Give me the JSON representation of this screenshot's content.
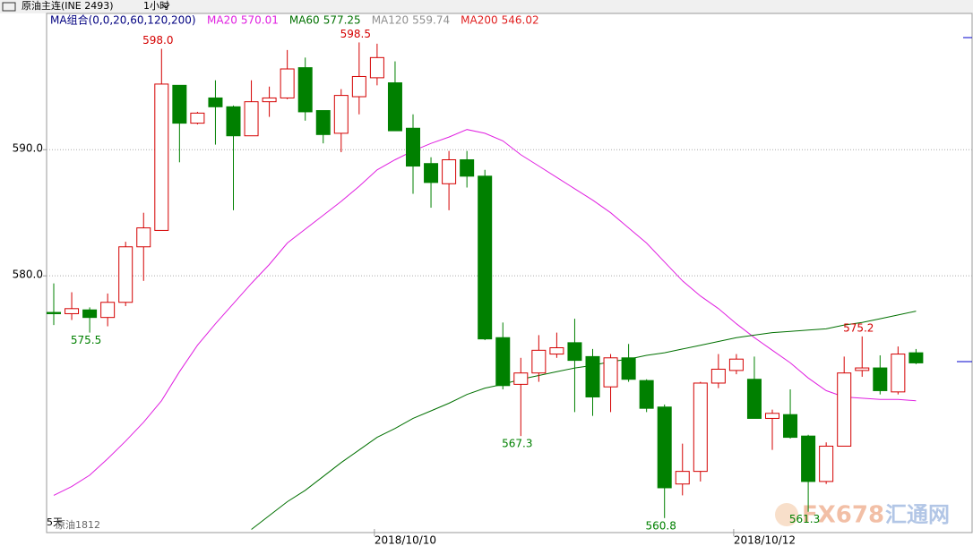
{
  "header": {
    "title": "原油主连(INE 2493)",
    "period": "1小时"
  },
  "chart_data": {
    "type": "candlestick",
    "legend_title": "MA组合(0,0,20,60,120,200)",
    "ylim": [
      559.65,
      600.8
    ],
    "yticks": [
      {
        "value": 580,
        "label": "580.0"
      },
      {
        "value": 590,
        "label": "590.0"
      }
    ],
    "grid": true,
    "up_color": "#d40000",
    "down_color": "#008000",
    "categories": [
      null,
      null,
      null,
      null,
      null,
      null,
      null,
      null,
      null,
      null,
      null,
      null,
      null,
      null,
      null,
      null,
      null,
      null,
      "2018/10/10",
      null,
      null,
      null,
      null,
      null,
      null,
      null,
      null,
      null,
      null,
      null,
      null,
      null,
      null,
      null,
      null,
      null,
      null,
      null,
      "2018/10/12",
      null,
      null,
      null,
      null,
      null,
      null,
      null,
      null,
      null,
      null
    ],
    "open": [
      577.1,
      577.0,
      577.3,
      576.7,
      577.9,
      582.3,
      583.6,
      595.1,
      592.1,
      594.1,
      593.4,
      591.1,
      593.8,
      594.1,
      596.5,
      593.1,
      591.3,
      594.2,
      595.7,
      595.3,
      591.7,
      588.9,
      587.3,
      589.2,
      587.9,
      575.1,
      571.4,
      572.3,
      573.8,
      574.7,
      573.6,
      571.2,
      573.5,
      571.7,
      569.6,
      563.5,
      564.5,
      571.5,
      572.5,
      571.8,
      568.7,
      569.0,
      567.3,
      563.7,
      566.5,
      572.5,
      572.7,
      570.8,
      573.9
    ],
    "high": [
      579.4,
      578.7,
      577.5,
      578.6,
      582.7,
      585.0,
      598.0,
      595.1,
      593.0,
      595.5,
      593.5,
      595.5,
      595.0,
      597.9,
      597.3,
      593.1,
      594.8,
      598.5,
      598.4,
      597.0,
      592.8,
      589.4,
      589.9,
      589.9,
      588.4,
      576.3,
      573.5,
      575.3,
      575.5,
      576.6,
      574.2,
      573.8,
      574.6,
      571.8,
      569.8,
      566.7,
      571.6,
      573.8,
      573.8,
      573.6,
      569.4,
      571.0,
      567.4,
      566.8,
      573.6,
      575.2,
      573.7,
      574.4,
      574.2
    ],
    "low": [
      576.1,
      576.5,
      575.5,
      576.0,
      577.6,
      579.6,
      583.6,
      589.0,
      592.0,
      590.4,
      585.2,
      591.1,
      592.6,
      594.0,
      592.3,
      590.5,
      589.8,
      592.8,
      595.1,
      591.5,
      586.5,
      585.4,
      585.2,
      587.0,
      574.9,
      571.0,
      567.3,
      571.6,
      573.5,
      569.2,
      568.9,
      569.2,
      571.6,
      569.2,
      560.8,
      562.6,
      563.7,
      571.1,
      572.2,
      568.7,
      566.2,
      567.1,
      561.3,
      563.5,
      566.5,
      572.0,
      570.6,
      570.6,
      573.0
    ],
    "close": [
      577.0,
      577.4,
      576.7,
      577.9,
      582.3,
      583.8,
      595.2,
      592.1,
      592.9,
      593.4,
      591.1,
      593.8,
      594.1,
      596.4,
      593.0,
      591.2,
      594.3,
      595.8,
      597.3,
      591.5,
      588.7,
      587.4,
      589.2,
      587.9,
      575.0,
      571.3,
      572.3,
      574.1,
      574.3,
      573.3,
      570.4,
      573.5,
      571.8,
      569.5,
      563.2,
      564.5,
      571.5,
      572.6,
      573.4,
      568.7,
      569.1,
      567.2,
      563.7,
      566.5,
      572.3,
      572.7,
      570.9,
      573.8,
      573.1
    ],
    "high_labels": [
      null,
      null,
      null,
      null,
      null,
      null,
      "598.0",
      null,
      null,
      null,
      null,
      null,
      null,
      null,
      null,
      null,
      null,
      "598.5",
      null,
      null,
      null,
      null,
      null,
      null,
      null,
      null,
      null,
      null,
      null,
      null,
      null,
      null,
      null,
      null,
      null,
      null,
      null,
      null,
      null,
      null,
      null,
      null,
      null,
      null,
      null,
      "575.2",
      null,
      null,
      null
    ],
    "low_labels": [
      null,
      null,
      "575.5",
      null,
      null,
      null,
      null,
      null,
      null,
      null,
      null,
      null,
      null,
      null,
      null,
      null,
      null,
      null,
      null,
      null,
      null,
      null,
      null,
      null,
      null,
      null,
      "567.3",
      null,
      null,
      null,
      null,
      null,
      null,
      null,
      "560.8",
      null,
      null,
      null,
      null,
      null,
      null,
      null,
      "561.3",
      null,
      null,
      null,
      null,
      null,
      null
    ],
    "series": [
      {
        "name": "MA20",
        "last": 570.01,
        "color": "#e020e0",
        "values": [
          562.6,
          563.3,
          564.2,
          565.5,
          566.9,
          568.4,
          570.1,
          572.4,
          574.5,
          576.2,
          577.8,
          579.4,
          580.9,
          582.6,
          583.7,
          584.8,
          585.9,
          587.1,
          588.4,
          589.2,
          589.9,
          590.5,
          591.0,
          591.6,
          591.3,
          590.7,
          589.6,
          588.7,
          587.8,
          586.9,
          586.0,
          585.0,
          583.8,
          582.6,
          581.1,
          579.6,
          578.4,
          577.4,
          576.2,
          575.1,
          574.1,
          573.1,
          571.9,
          570.9,
          570.4,
          570.3,
          570.2,
          570.2,
          570.1
        ]
      },
      {
        "name": "MA60",
        "last": 577.25,
        "color": "#007000",
        "values": [
          null,
          null,
          null,
          null,
          null,
          null,
          null,
          null,
          null,
          null,
          null,
          559.9,
          561.0,
          562.1,
          563.0,
          564.1,
          565.2,
          566.2,
          567.2,
          567.9,
          568.7,
          569.3,
          569.9,
          570.6,
          571.1,
          571.4,
          571.8,
          572.1,
          572.4,
          572.7,
          572.9,
          573.2,
          573.4,
          573.7,
          573.9,
          574.2,
          574.5,
          574.8,
          575.1,
          575.3,
          575.5,
          575.6,
          575.7,
          575.8,
          576.1,
          576.3,
          576.6,
          576.9,
          577.2
        ]
      },
      {
        "name": "MA120",
        "last": 559.74,
        "color": "#909090",
        "values": [
          null,
          null,
          null,
          null,
          null,
          null,
          null,
          null,
          null,
          null,
          null,
          null,
          null,
          null,
          null,
          null,
          null,
          null,
          null,
          null,
          null,
          null,
          null,
          null,
          null,
          null,
          null,
          null,
          null,
          null,
          null,
          null,
          null,
          null,
          null,
          null,
          null,
          null,
          null,
          null,
          null,
          null,
          null,
          null,
          null,
          null,
          null,
          null,
          null
        ]
      },
      {
        "name": "MA200",
        "last": 546.02,
        "color": "#e02020",
        "values": [
          null,
          null,
          null,
          null,
          null,
          null,
          null,
          null,
          null,
          null,
          null,
          null,
          null,
          null,
          null,
          null,
          null,
          null,
          null,
          null,
          null,
          null,
          null,
          null,
          null,
          null,
          null,
          null,
          null,
          null,
          null,
          null,
          null,
          null,
          null,
          null,
          null,
          null,
          null,
          null,
          null,
          null,
          null,
          null,
          null,
          null,
          null,
          null,
          null
        ]
      }
    ]
  },
  "footer": {
    "range": "5天",
    "symbol": "原油1812"
  },
  "watermark": {
    "brand": "FX678",
    "name": "汇通网"
  }
}
